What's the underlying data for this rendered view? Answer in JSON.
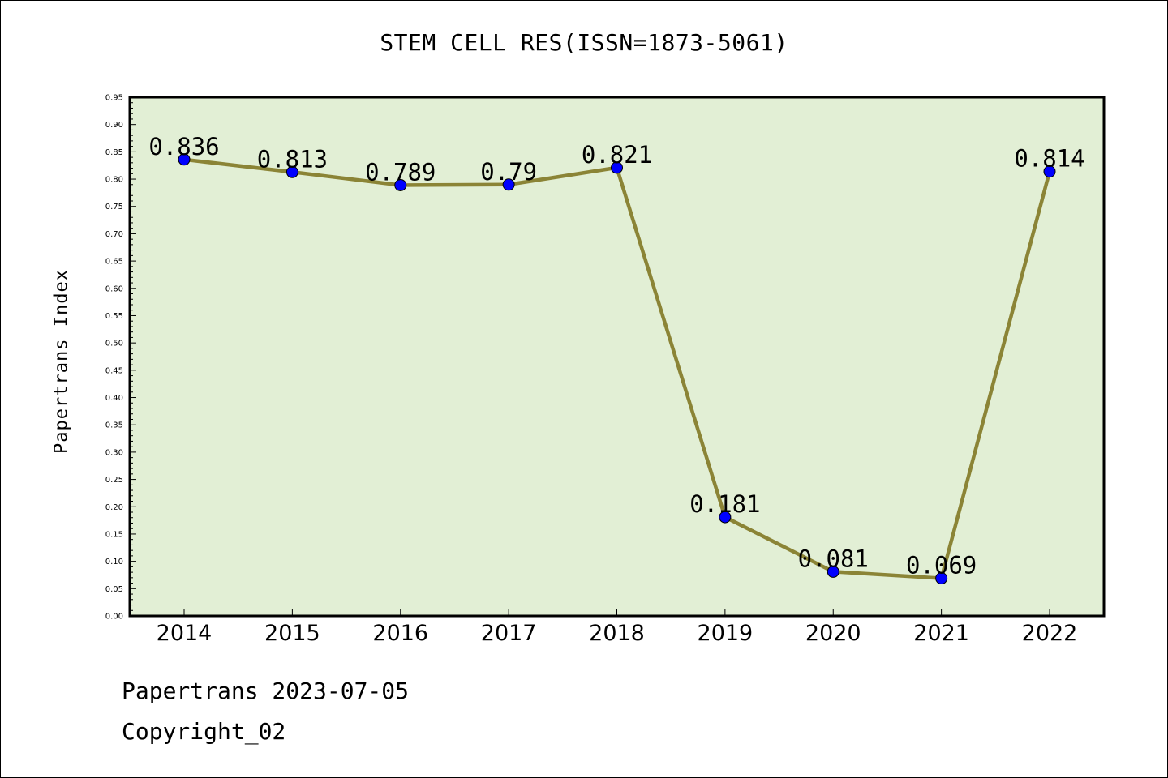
{
  "chart_data": {
    "type": "line",
    "title": "STEM CELL RES(ISSN=1873-5061)",
    "xlabel": "",
    "ylabel": "Papertrans Index",
    "categories": [
      "2014",
      "2015",
      "2016",
      "2017",
      "2018",
      "2019",
      "2020",
      "2021",
      "2022"
    ],
    "series": [
      {
        "values": [
          0.836,
          0.813,
          0.789,
          0.79,
          0.821,
          0.181,
          0.081,
          0.069,
          0.814
        ],
        "labels": [
          "0.836",
          "0.813",
          "0.789",
          "0.79",
          "0.821",
          "0.181",
          "0.081",
          "0.069",
          "0.814"
        ]
      }
    ],
    "ylim": [
      0,
      0.95
    ],
    "ytick_step": 0.05,
    "grid": false,
    "colors": {
      "line": "#8b8436",
      "marker": "#0000ff",
      "plot_background": "#e2efd5"
    }
  },
  "footer": {
    "line1": "Papertrans 2023-07-05",
    "line2": "Copyright_02"
  }
}
